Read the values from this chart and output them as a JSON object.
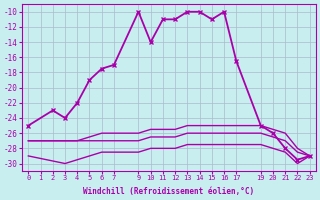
{
  "xlabel": "Windchill (Refroidissement éolien,°C)",
  "background_color": "#c8eef0",
  "grid_color": "#aabbcc",
  "line_color": "#aa00aa",
  "xlim": [
    -0.5,
    23.5
  ],
  "ylim": [
    -31,
    -9
  ],
  "xticks": [
    0,
    1,
    2,
    3,
    4,
    5,
    6,
    7,
    9,
    10,
    11,
    12,
    13,
    14,
    15,
    16,
    17,
    19,
    20,
    21,
    22,
    23
  ],
  "yticks": [
    -10,
    -12,
    -14,
    -16,
    -18,
    -20,
    -22,
    -24,
    -26,
    -28,
    -30
  ],
  "series": [
    {
      "x": [
        0,
        2,
        3,
        4,
        5,
        6,
        7,
        9,
        10,
        11,
        12,
        13,
        14,
        15,
        16,
        17,
        19,
        20,
        21,
        22,
        23
      ],
      "y": [
        -25,
        -23,
        -24,
        -22,
        -19,
        -17.5,
        -17,
        -10,
        -14,
        -11,
        -11,
        -10,
        -10,
        -11,
        -10,
        -16.5,
        -25,
        -26,
        -28,
        -29.5,
        -29
      ],
      "marker": "x",
      "lw": 1.3
    },
    {
      "x": [
        0,
        3,
        4,
        5,
        6,
        7,
        9,
        10,
        11,
        12,
        13,
        14,
        15,
        16,
        17,
        19,
        20,
        21,
        22,
        23
      ],
      "y": [
        -27,
        -27,
        -27,
        -26.5,
        -26,
        -26,
        -26,
        -25.5,
        -25.5,
        -25.5,
        -25,
        -25,
        -25,
        -25,
        -25,
        -25,
        -25.5,
        -26,
        -28,
        -29
      ],
      "marker": null,
      "lw": 1.0
    },
    {
      "x": [
        0,
        3,
        4,
        5,
        6,
        7,
        9,
        10,
        11,
        12,
        13,
        14,
        15,
        16,
        17,
        19,
        20,
        21,
        22,
        23
      ],
      "y": [
        -27,
        -27,
        -27,
        -27,
        -27,
        -27,
        -27,
        -26.5,
        -26.5,
        -26.5,
        -26,
        -26,
        -26,
        -26,
        -26,
        -26,
        -26.5,
        -27,
        -28.5,
        -29
      ],
      "marker": null,
      "lw": 1.0
    },
    {
      "x": [
        0,
        3,
        4,
        5,
        6,
        7,
        9,
        10,
        11,
        12,
        13,
        14,
        15,
        16,
        17,
        19,
        20,
        21,
        22,
        23
      ],
      "y": [
        -29,
        -30,
        -29.5,
        -29,
        -28.5,
        -28.5,
        -28.5,
        -28,
        -28,
        -28,
        -27.5,
        -27.5,
        -27.5,
        -27.5,
        -27.5,
        -27.5,
        -28,
        -28.5,
        -30,
        -29
      ],
      "marker": null,
      "lw": 1.0
    }
  ]
}
